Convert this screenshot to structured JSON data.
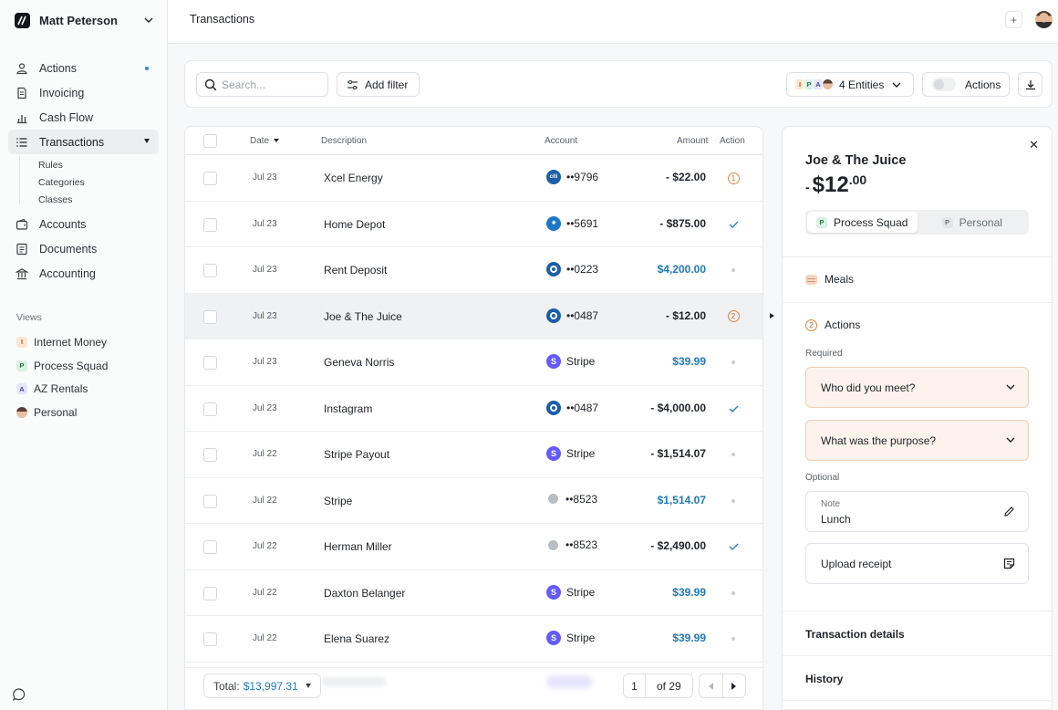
{
  "user": {
    "name": "Matt Peterson"
  },
  "sidebar": {
    "items": [
      {
        "label": "Actions"
      },
      {
        "label": "Invoicing"
      },
      {
        "label": "Cash Flow"
      },
      {
        "label": "Transactions"
      },
      {
        "label": "Accounts"
      },
      {
        "label": "Documents"
      },
      {
        "label": "Accounting"
      }
    ],
    "sub_items": [
      {
        "label": "Rules"
      },
      {
        "label": "Categories"
      },
      {
        "label": "Classes"
      }
    ],
    "views_title": "Views",
    "views": [
      {
        "label": "Internet Money",
        "badge": "I"
      },
      {
        "label": "Process Squad",
        "badge": "P"
      },
      {
        "label": "AZ Rentals",
        "badge": "A"
      },
      {
        "label": "Personal",
        "badge": "avatar"
      }
    ]
  },
  "header": {
    "title": "Transactions"
  },
  "toolbar": {
    "search_placeholder": "Search...",
    "add_filter": "Add filter",
    "entity_badges": [
      "I",
      "P",
      "A"
    ],
    "entities_label": "4 Entities",
    "actions_label": "Actions"
  },
  "table": {
    "headers": {
      "date": "Date",
      "description": "Description",
      "account": "Account",
      "amount": "Amount",
      "action": "Action"
    },
    "rows": [
      {
        "date": "Jul 23",
        "description": "Xcel Energy",
        "account_icon": "citi",
        "account": "••9796",
        "amount": "- $22.00",
        "positive": false,
        "action": "1"
      },
      {
        "date": "Jul 23",
        "description": "Home Depot",
        "account_icon": "atom",
        "account": "••5691",
        "amount": "- $875.00",
        "positive": false,
        "action": "check"
      },
      {
        "date": "Jul 23",
        "description": "Rent Deposit",
        "account_icon": "chase",
        "account": "••0223",
        "amount": "$4,200.00",
        "positive": true,
        "action": "dot"
      },
      {
        "date": "Jul 23",
        "description": "Joe & The Juice",
        "account_icon": "chase",
        "account": "••0487",
        "amount": "- $12.00",
        "positive": false,
        "action": "2",
        "selected": true
      },
      {
        "date": "Jul 23",
        "description": "Geneva Norris",
        "account_icon": "stripe",
        "account": "Stripe",
        "amount": "$39.99",
        "positive": true,
        "action": "dot"
      },
      {
        "date": "Jul 23",
        "description": "Instagram",
        "account_icon": "chase",
        "account": "••0487",
        "amount": "- $4,000.00",
        "positive": false,
        "action": "check"
      },
      {
        "date": "Jul 22",
        "description": "Stripe Payout",
        "account_icon": "stripe",
        "account": "Stripe",
        "amount": "- $1,514.07",
        "positive": false,
        "action": "dot"
      },
      {
        "date": "Jul 22",
        "description": "Stripe",
        "account_icon": "gray",
        "account": "••8523",
        "amount": "$1,514.07",
        "positive": true,
        "action": "dot"
      },
      {
        "date": "Jul 22",
        "description": "Herman Miller",
        "account_icon": "gray",
        "account": "••8523",
        "amount": "- $2,490.00",
        "positive": false,
        "action": "check"
      },
      {
        "date": "Jul 22",
        "description": "Daxton Belanger",
        "account_icon": "stripe",
        "account": "Stripe",
        "amount": "$39.99",
        "positive": true,
        "action": "dot"
      },
      {
        "date": "Jul 22",
        "description": "Elena Suarez",
        "account_icon": "stripe",
        "account": "Stripe",
        "amount": "$39.99",
        "positive": true,
        "action": "dot"
      }
    ],
    "footer": {
      "total_label": "Total:",
      "total_value": "$13,997.31",
      "page": "1",
      "of_pages": "of 29"
    }
  },
  "detail": {
    "title": "Joe & The Juice",
    "amount_sign": "-",
    "amount_dollars": "$12",
    "amount_cents": ".00",
    "entities": [
      {
        "label": "Process Squad",
        "badge": "P",
        "selected": true
      },
      {
        "label": "Personal",
        "badge": "P",
        "selected": false
      }
    ],
    "category": "Meals",
    "actions_count": "2",
    "actions_title": "Actions",
    "required_label": "Required",
    "questions": [
      "Who did you meet?",
      "What was the purpose?"
    ],
    "optional_label": "Optional",
    "note_label": "Note",
    "note_value": "Lunch",
    "upload_label": "Upload receipt",
    "transaction_details": "Transaction details",
    "history": "History"
  },
  "colors": {
    "positive_amount": "#1f79bd",
    "action_orange": "#c2642a",
    "accent_dot": "#2a8bd3"
  }
}
